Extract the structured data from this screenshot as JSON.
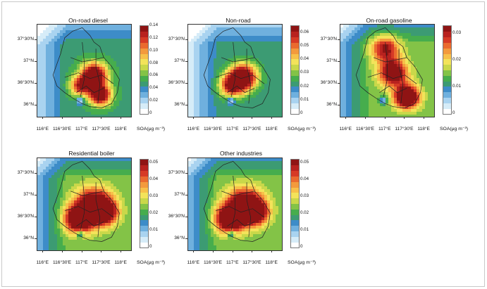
{
  "panels": [
    {
      "title": "On-road diesel",
      "y_ticks": [
        "37°30′N",
        "37°N",
        "36°30′N",
        "36°N"
      ],
      "x_ticks": [
        "116°E",
        "116°30′E",
        "117°E",
        "117°30′E",
        "118°E"
      ],
      "colorbar": {
        "ticks": [
          "0.14",
          "0.12",
          "0.10",
          "0.08",
          "0.06",
          "0.04",
          "0.02",
          "0"
        ],
        "range": [
          0,
          0.14
        ],
        "unit": "SOA(μg m⁻³)"
      },
      "hotspots_level": "high"
    },
    {
      "title": "Non-road",
      "y_ticks": [
        "37°30′N",
        "37°N",
        "36°30′N",
        "36°N"
      ],
      "x_ticks": [
        "116°E",
        "116°30′E",
        "117°E",
        "117°30′E",
        "118°E"
      ],
      "colorbar": {
        "ticks": [
          "0.06",
          "0.05",
          "0.04",
          "0.03",
          "0.02",
          "0.01",
          "0"
        ],
        "range": [
          0,
          0.065
        ],
        "unit": "SOA(μg m⁻³)"
      }
    },
    {
      "title": "On-road gasoline",
      "y_ticks": [
        "37°30′N",
        "37°N",
        "36°30′N",
        "36°N"
      ],
      "x_ticks": [
        "116°E",
        "116°30′E",
        "117°E",
        "117°30′E",
        "118°E"
      ],
      "colorbar": {
        "ticks": [
          "0.03",
          "0.02",
          "0.01",
          "0"
        ],
        "range": [
          0,
          0.033
        ],
        "unit": "SOA(μg m⁻³)"
      }
    },
    {
      "title": "Residential boiler",
      "y_ticks": [
        "37°30′N",
        "37°N",
        "36°30′N",
        "36°N"
      ],
      "x_ticks": [
        "116°E",
        "116°30′E",
        "117°E",
        "117°30′E",
        "118°E"
      ],
      "colorbar": {
        "ticks": [
          "0.05",
          "0.04",
          "0.03",
          "0.02",
          "0.01",
          "0"
        ],
        "range": [
          0,
          0.052
        ],
        "unit": "SOA(μg m⁻³)"
      }
    },
    {
      "title": "Other industries",
      "y_ticks": [
        "37°30′N",
        "37°N",
        "36°30′N",
        "36°N"
      ],
      "x_ticks": [
        "116°E",
        "116°30′E",
        "117°E",
        "117°30′E",
        "118°E"
      ],
      "colorbar": {
        "ticks": [
          "0.05",
          "0.04",
          "0.03",
          "0.02",
          "0.01",
          "0"
        ],
        "range": [
          0,
          0.052
        ],
        "unit": "SOA(μg m⁻³)"
      }
    }
  ],
  "colors": {
    "scale": [
      "#ffffff",
      "#d6ecf8",
      "#a9d3f0",
      "#6fb0de",
      "#3d8cc8",
      "#3c9b73",
      "#46ad4d",
      "#83c347",
      "#c9d84a",
      "#f3e35a",
      "#f7c04a",
      "#f39a3d",
      "#ea6a2f",
      "#d63a26",
      "#b8221f",
      "#8f1414"
    ],
    "border": "#222222"
  }
}
